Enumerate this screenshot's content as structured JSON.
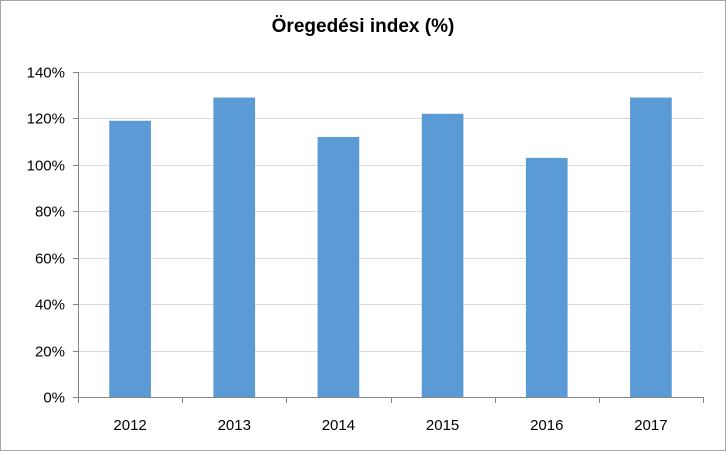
{
  "chart_data": {
    "type": "bar",
    "title": "Öregedési index (%)",
    "categories": [
      "2012",
      "2013",
      "2014",
      "2015",
      "2016",
      "2017"
    ],
    "series": [
      {
        "values": [
          119,
          129,
          112,
          122,
          103,
          129
        ]
      }
    ],
    "ylim": [
      0,
      140
    ],
    "yticks": [
      0,
      20,
      40,
      60,
      80,
      100,
      120,
      140
    ],
    "ytick_suffix": "%",
    "grid": true,
    "legend": "none",
    "bar_color": "#5b9bd5",
    "grid_color": "#d9d9d9",
    "axis_color": "#868686"
  }
}
